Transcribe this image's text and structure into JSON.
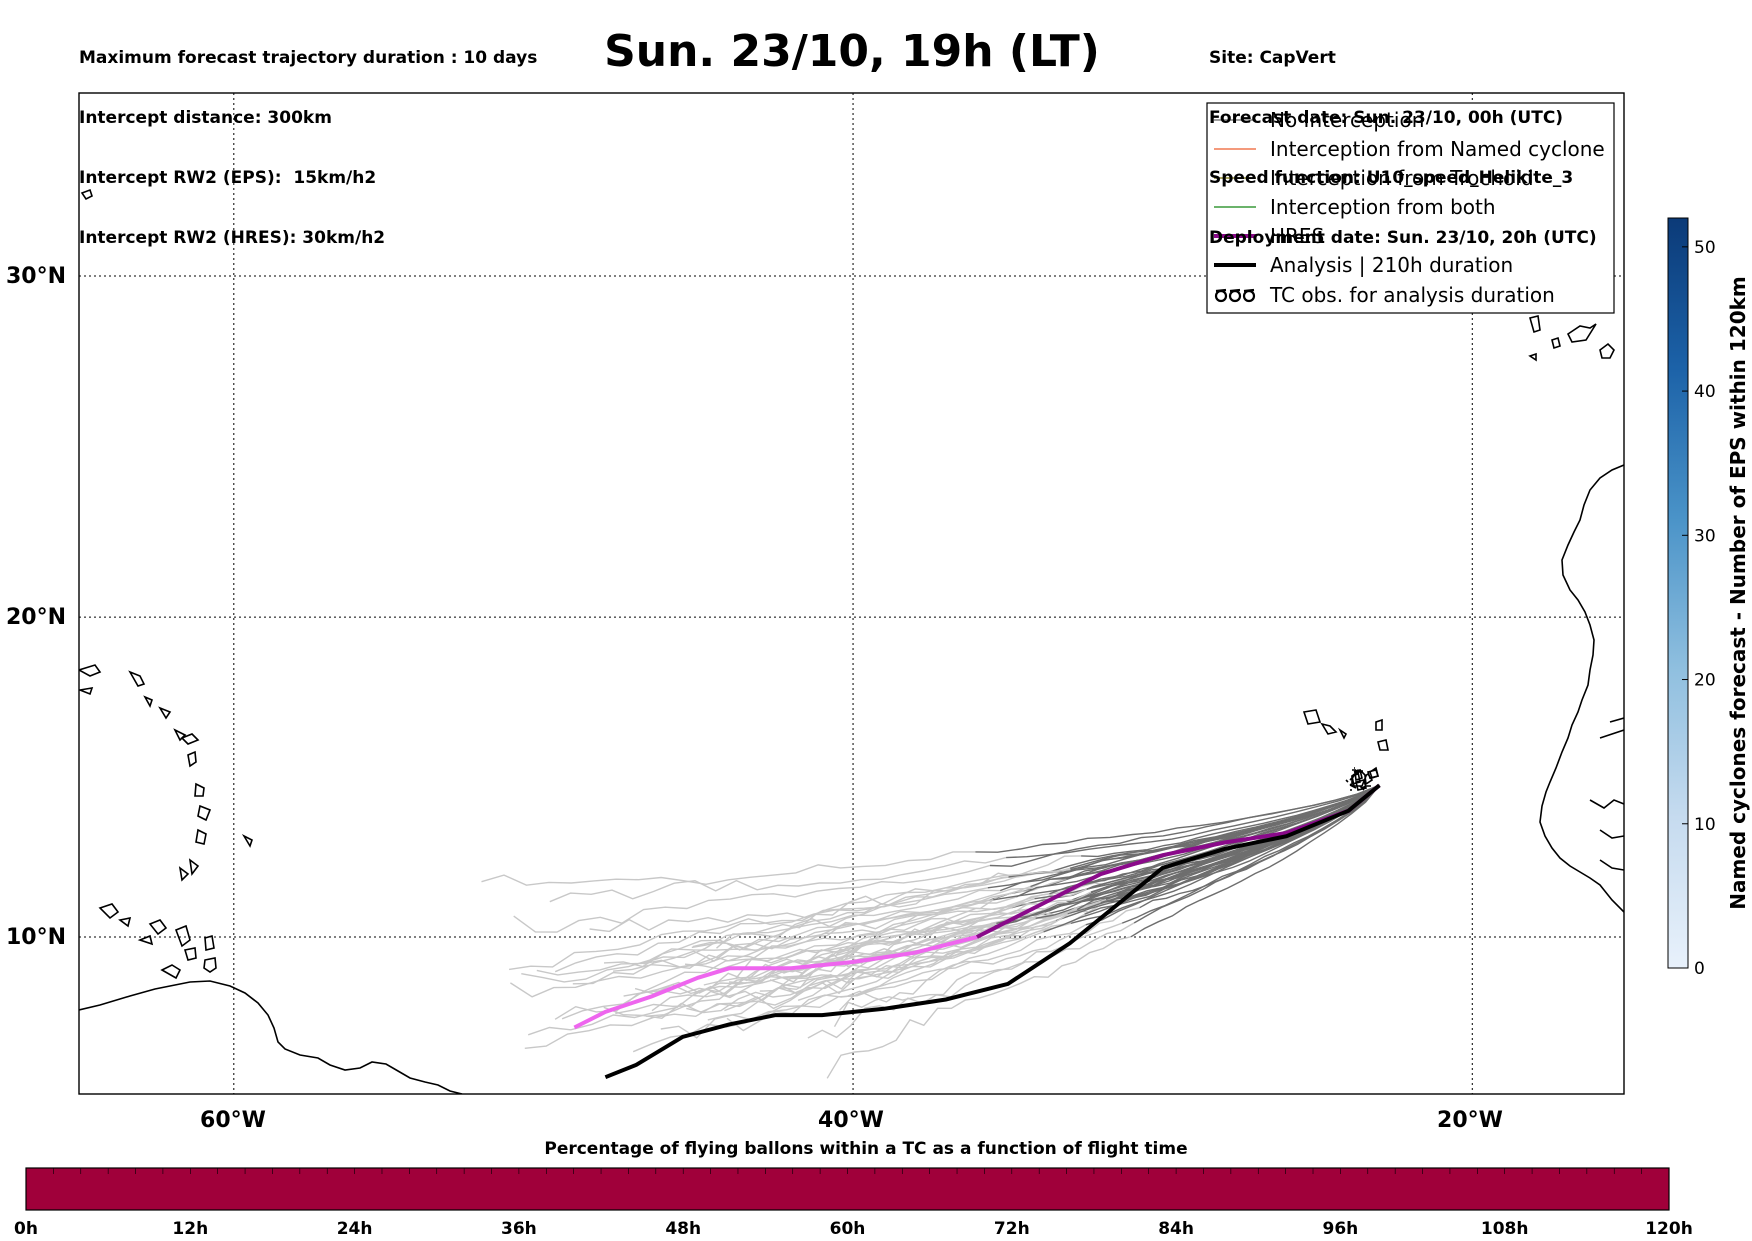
{
  "header": {
    "title": "Sun. 23/10, 19h (LT)",
    "info_left": [
      "Maximum forecast trajectory duration : 10 days",
      "Intercept distance: 300km",
      "Intercept RW2 (EPS):  15km/h2",
      "Intercept RW2 (HRES): 30km/h2"
    ],
    "info_right": [
      "Site: CapVert",
      "Forecast date: Sun. 23/10, 00h (UTC)",
      "Speed function: U10_speed_Helikite_3",
      "Deployment date: Sun. 23/10, 20h (UTC)"
    ]
  },
  "map": {
    "lon_labels": [
      "60°W",
      "40°W",
      "20°W"
    ],
    "lat_labels": [
      "30°N",
      "20°N",
      "10°N"
    ],
    "grid": "dotted"
  },
  "legend": {
    "placement": "top-right",
    "items": [
      {
        "label": "No Interception",
        "color": "#808080",
        "kind": "thin"
      },
      {
        "label": "Interception from Named cyclone",
        "color": "#f07850",
        "kind": "thin"
      },
      {
        "label": "Interception from Trochoid",
        "color": "#908a30",
        "kind": "thin"
      },
      {
        "label": "Interception from both",
        "color": "#3a9a3a",
        "kind": "thin"
      },
      {
        "label": "HRES",
        "color": "#8a0a8a",
        "kind": "thick"
      },
      {
        "label": "Analysis | 210h duration",
        "color": "#000000",
        "kind": "thick"
      },
      {
        "label": "TC obs. for analysis duration",
        "color": "#000000",
        "kind": "symbol"
      }
    ]
  },
  "colorbar_right": {
    "label": "Named cyclones forecast - Number of EPS within 120km",
    "ticks": [
      "0",
      "10",
      "20",
      "30",
      "40",
      "50"
    ],
    "range": [
      0,
      52
    ],
    "colors": [
      "#e8f1fb",
      "#0b3a78"
    ]
  },
  "colorbar_bottom": {
    "title": "Percentage of flying ballons within a TC as a function of flight time",
    "ticks": [
      "0h",
      "12h",
      "24h",
      "36h",
      "48h",
      "60h",
      "72h",
      "84h",
      "96h",
      "108h",
      "120h"
    ],
    "fill_color": "#a0003a"
  },
  "chart_data": {
    "type": "map-trajectories",
    "site": "CapVert",
    "hres_track": [
      [
        -23.0,
        14.8
      ],
      [
        -24.0,
        14.0
      ],
      [
        -26.0,
        13.3
      ],
      [
        -28.0,
        13.0
      ],
      [
        -30.0,
        12.6
      ],
      [
        -32.0,
        12.0
      ],
      [
        -34.0,
        11.0
      ],
      [
        -36.0,
        10.0
      ],
      [
        -38.0,
        9.5
      ],
      [
        -40.0,
        9.2
      ],
      [
        -42.0,
        9.0
      ],
      [
        -44.0,
        9.0
      ],
      [
        -45.0,
        8.7
      ],
      [
        -46.5,
        8.1
      ],
      [
        -48.0,
        7.6
      ],
      [
        -49.0,
        7.1
      ]
    ],
    "analysis_track": [
      [
        -23.0,
        14.8
      ],
      [
        -24.0,
        14.0
      ],
      [
        -26.0,
        13.2
      ],
      [
        -28.0,
        12.8
      ],
      [
        -30.0,
        12.2
      ],
      [
        -31.5,
        11.0
      ],
      [
        -33.0,
        9.8
      ],
      [
        -35.0,
        8.5
      ],
      [
        -37.0,
        8.0
      ],
      [
        -39.0,
        7.7
      ],
      [
        -41.0,
        7.5
      ],
      [
        -42.5,
        7.5
      ],
      [
        -44.0,
        7.2
      ],
      [
        -45.5,
        6.8
      ],
      [
        -47.0,
        5.9
      ],
      [
        -48.0,
        5.5
      ]
    ]
  }
}
